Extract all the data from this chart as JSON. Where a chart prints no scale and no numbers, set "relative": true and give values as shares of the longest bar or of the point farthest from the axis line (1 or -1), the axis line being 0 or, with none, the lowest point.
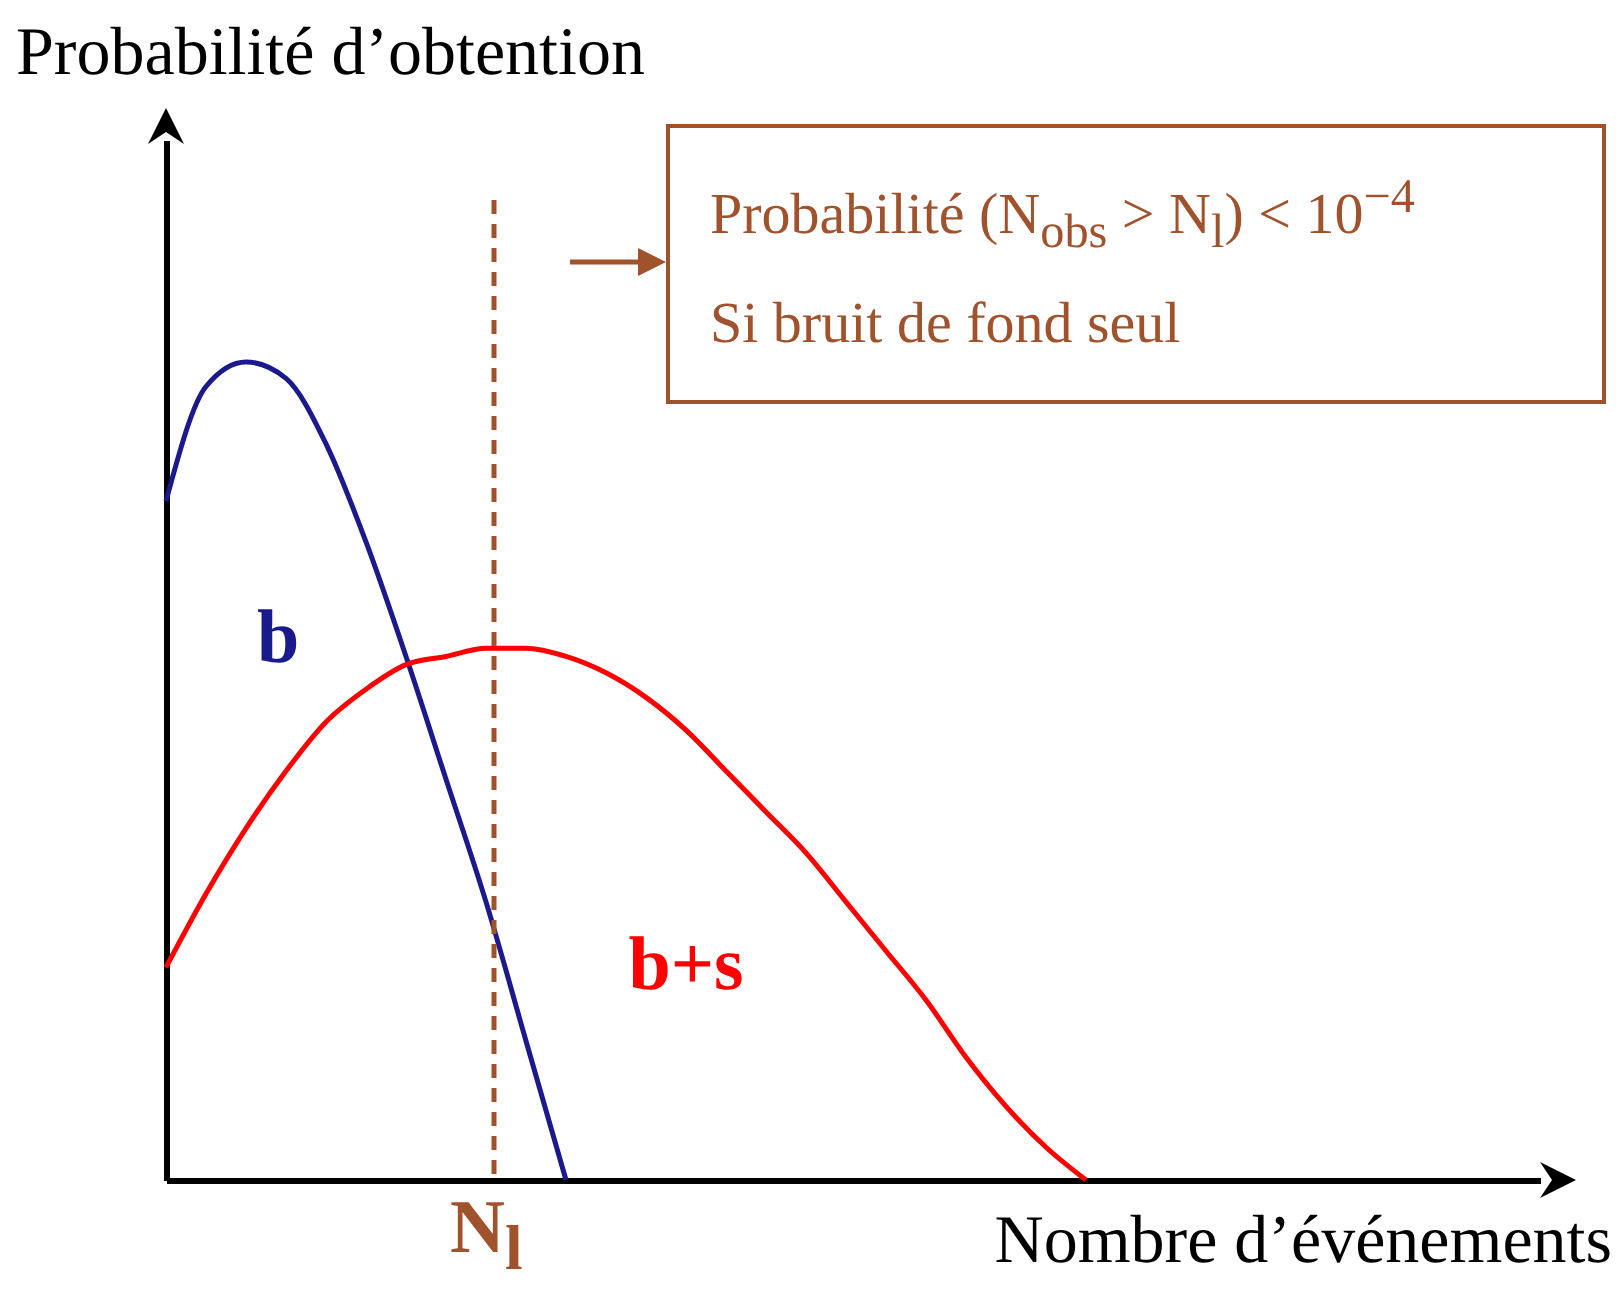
{
  "chart_data": {
    "type": "line",
    "relative": true,
    "xlabel": "Nombre d’événements",
    "ylabel": "Probabilité d’obtention",
    "categories": [
      null,
      null,
      null,
      null,
      null,
      null,
      null,
      null,
      null,
      null,
      null,
      null,
      null,
      null,
      null,
      null,
      null,
      null,
      null,
      null,
      null,
      null,
      null,
      null
    ],
    "series": [
      {
        "name": "b",
        "color": "#1a1a8c",
        "values": [
          0.83,
          0.97,
          1.0,
          0.98,
          0.9,
          0.78,
          0.64,
          0.49,
          0.34,
          0.17,
          0,
          null,
          null,
          null,
          null,
          null,
          null,
          null,
          null,
          null,
          null,
          null,
          null,
          null
        ]
      },
      {
        "name": "b+s",
        "color": "#ff0000",
        "values": [
          0.26,
          0.35,
          0.43,
          0.5,
          0.56,
          0.6,
          0.63,
          0.64,
          0.65,
          0.65,
          0.64,
          0.62,
          0.59,
          0.55,
          0.5,
          0.45,
          0.4,
          0.34,
          0.28,
          0.22,
          0.15,
          0.09,
          0.04,
          0
        ]
      }
    ],
    "annotations": [
      "N$_{l}$",
      "Probabilité (N$_{obs}$ > N$_{l}$) < 10$^{−4}$",
      "Si bruit de fond seul"
    ]
  }
}
